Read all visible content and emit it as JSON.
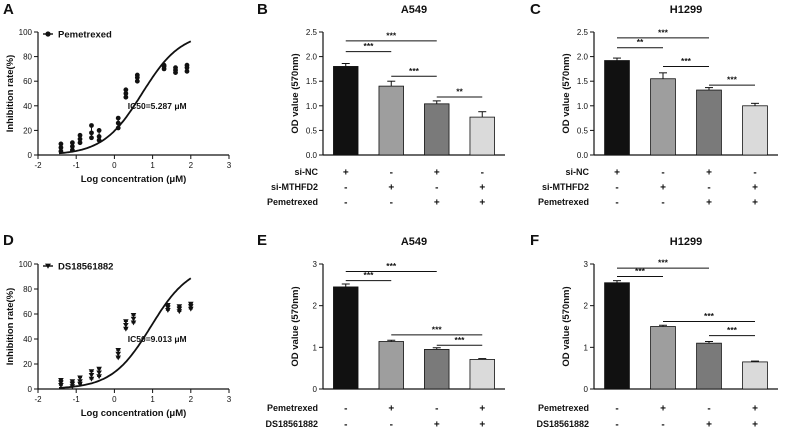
{
  "panels": [
    {
      "letter": "A",
      "chart_data": {
        "type": "scatter",
        "title": "",
        "xlabel": "Log concentration (μM)",
        "ylabel": "Inhibition rate(%)",
        "xlim": [
          -2,
          3
        ],
        "ylim": [
          0,
          100
        ],
        "xticks": [
          "-2",
          "-1",
          "0",
          "1",
          "2",
          "3"
        ],
        "yticks": [
          "0",
          "20",
          "40",
          "60",
          "80",
          "100"
        ],
        "legend": "Pemetrexed",
        "marker": "circle",
        "annotation": "IC50=5.287 μM",
        "points": [
          {
            "x": -1.4,
            "y": [
              3,
              6,
              9
            ]
          },
          {
            "x": -1.1,
            "y": [
              4,
              7,
              10
            ]
          },
          {
            "x": -0.9,
            "y": [
              10,
              13,
              16
            ]
          },
          {
            "x": -0.6,
            "y": [
              14,
              18,
              24
            ]
          },
          {
            "x": -0.4,
            "y": [
              12,
              15,
              20
            ]
          },
          {
            "x": 0.1,
            "y": [
              22,
              26,
              30
            ]
          },
          {
            "x": 0.3,
            "y": [
              47,
              50,
              53
            ]
          },
          {
            "x": 0.6,
            "y": [
              60,
              63,
              65
            ]
          },
          {
            "x": 1.3,
            "y": [
              70,
              72,
              73
            ]
          },
          {
            "x": 1.6,
            "y": [
              67,
              69,
              71
            ]
          },
          {
            "x": 1.9,
            "y": [
              68,
              71,
              73
            ]
          }
        ],
        "curve": {
          "bottom": 0,
          "top": 100,
          "log_ic50": 0.723,
          "hill": 0.85
        }
      }
    },
    {
      "letter": "B",
      "chart_data": {
        "type": "bar",
        "title": "A549",
        "ylabel": "OD value (570nm)",
        "ylim": [
          0,
          2.5
        ],
        "yticks": [
          "0.0",
          "0.5",
          "1.0",
          "1.5",
          "2.0",
          "2.5"
        ],
        "values": [
          1.8,
          1.4,
          1.04,
          0.77
        ],
        "errors": [
          0.06,
          0.1,
          0.06,
          0.11
        ],
        "colors": [
          "#111111",
          "#9e9e9e",
          "#7a7a7a",
          "#dadada"
        ],
        "condition_rows": [
          {
            "label": "si-NC",
            "marks": [
              "+",
              "-",
              "+",
              "-"
            ]
          },
          {
            "label": "si-MTHFD2",
            "marks": [
              "-",
              "+",
              "-",
              "+"
            ]
          },
          {
            "label": "Pemetrexed",
            "marks": [
              "-",
              "-",
              "+",
              "+"
            ]
          }
        ],
        "sig": [
          {
            "from": 1,
            "to": 2,
            "label": "***",
            "level": 2.1
          },
          {
            "from": 1,
            "to": 3,
            "label": "***",
            "level": 2.32
          },
          {
            "from": 2,
            "to": 3,
            "label": "***",
            "level": 1.6
          },
          {
            "from": 3,
            "to": 4,
            "label": "**",
            "level": 1.18
          }
        ]
      }
    },
    {
      "letter": "C",
      "chart_data": {
        "type": "bar",
        "title": "H1299",
        "ylabel": "OD value (570nm)",
        "ylim": [
          0,
          2.5
        ],
        "yticks": [
          "0.0",
          "0.5",
          "1.0",
          "1.5",
          "2.0",
          "2.5"
        ],
        "values": [
          1.92,
          1.55,
          1.32,
          1.0
        ],
        "errors": [
          0.05,
          0.12,
          0.05,
          0.05
        ],
        "colors": [
          "#111111",
          "#9e9e9e",
          "#7a7a7a",
          "#dadada"
        ],
        "condition_rows": [
          {
            "label": "si-NC",
            "marks": [
              "+",
              "-",
              "+",
              "-"
            ]
          },
          {
            "label": "si-MTHFD2",
            "marks": [
              "-",
              "+",
              "-",
              "+"
            ]
          },
          {
            "label": "Pemetrexed",
            "marks": [
              "-",
              "-",
              "+",
              "+"
            ]
          }
        ],
        "sig": [
          {
            "from": 1,
            "to": 2,
            "label": "**",
            "level": 2.18
          },
          {
            "from": 1,
            "to": 3,
            "label": "***",
            "level": 2.38
          },
          {
            "from": 2,
            "to": 3,
            "label": "***",
            "level": 1.8
          },
          {
            "from": 3,
            "to": 4,
            "label": "***",
            "level": 1.42
          }
        ]
      }
    },
    {
      "letter": "D",
      "chart_data": {
        "type": "scatter",
        "title": "",
        "xlabel": "Log concentration (μM)",
        "ylabel": "Inhibition rate(%)",
        "xlim": [
          -2,
          3
        ],
        "ylim": [
          0,
          100
        ],
        "xticks": [
          "-2",
          "-1",
          "0",
          "1",
          "2",
          "3"
        ],
        "yticks": [
          "0",
          "20",
          "40",
          "60",
          "80",
          "100"
        ],
        "legend": "DS18561882",
        "marker": "triangle-down",
        "annotation": "IC50=9.013 μM",
        "points": [
          {
            "x": -1.4,
            "y": [
              3,
              5,
              7
            ]
          },
          {
            "x": -1.1,
            "y": [
              2,
              4,
              6
            ]
          },
          {
            "x": -0.9,
            "y": [
              4,
              6,
              9
            ]
          },
          {
            "x": -0.6,
            "y": [
              8,
              11,
              14
            ]
          },
          {
            "x": -0.4,
            "y": [
              10,
              13,
              16
            ]
          },
          {
            "x": 0.1,
            "y": [
              25,
              28,
              31
            ]
          },
          {
            "x": 0.3,
            "y": [
              48,
              51,
              54
            ]
          },
          {
            "x": 0.5,
            "y": [
              53,
              56,
              59
            ]
          },
          {
            "x": 1.4,
            "y": [
              63,
              65,
              67
            ]
          },
          {
            "x": 1.7,
            "y": [
              62,
              64,
              66
            ]
          },
          {
            "x": 2.0,
            "y": [
              64,
              66,
              68
            ]
          }
        ],
        "curve": {
          "bottom": 0,
          "top": 100,
          "log_ic50": 0.955,
          "hill": 0.85
        }
      }
    },
    {
      "letter": "E",
      "chart_data": {
        "type": "bar",
        "title": "A549",
        "ylabel": "OD value (570nm)",
        "ylim": [
          0,
          3
        ],
        "yticks": [
          "0",
          "1",
          "2",
          "3"
        ],
        "values": [
          2.45,
          1.14,
          0.95,
          0.71
        ],
        "errors": [
          0.07,
          0.03,
          0.04,
          0.02
        ],
        "colors": [
          "#111111",
          "#9e9e9e",
          "#7a7a7a",
          "#dadada"
        ],
        "condition_rows": [
          {
            "label": "Pemetrexed",
            "marks": [
              "-",
              "+",
              "-",
              "+"
            ]
          },
          {
            "label": "DS18561882",
            "marks": [
              "-",
              "-",
              "+",
              "+"
            ]
          }
        ],
        "sig": [
          {
            "from": 1,
            "to": 2,
            "label": "***",
            "level": 2.6
          },
          {
            "from": 1,
            "to": 3,
            "label": "***",
            "level": 2.82
          },
          {
            "from": 2,
            "to": 4,
            "label": "***",
            "level": 1.3
          },
          {
            "from": 3,
            "to": 4,
            "label": "***",
            "level": 1.05
          }
        ]
      }
    },
    {
      "letter": "F",
      "chart_data": {
        "type": "bar",
        "title": "H1299",
        "ylabel": "OD value (570nm)",
        "ylim": [
          0,
          3
        ],
        "yticks": [
          "0",
          "1",
          "2",
          "3"
        ],
        "values": [
          2.55,
          1.5,
          1.1,
          0.65
        ],
        "errors": [
          0.05,
          0.03,
          0.04,
          0.02
        ],
        "colors": [
          "#111111",
          "#9e9e9e",
          "#7a7a7a",
          "#dadada"
        ],
        "condition_rows": [
          {
            "label": "Pemetrexed",
            "marks": [
              "-",
              "+",
              "-",
              "+"
            ]
          },
          {
            "label": "DS18561882",
            "marks": [
              "-",
              "-",
              "+",
              "+"
            ]
          }
        ],
        "sig": [
          {
            "from": 1,
            "to": 2,
            "label": "***",
            "level": 2.7
          },
          {
            "from": 1,
            "to": 3,
            "label": "***",
            "level": 2.9
          },
          {
            "from": 2,
            "to": 4,
            "label": "***",
            "level": 1.62
          },
          {
            "from": 3,
            "to": 4,
            "label": "***",
            "level": 1.28
          }
        ]
      }
    }
  ]
}
